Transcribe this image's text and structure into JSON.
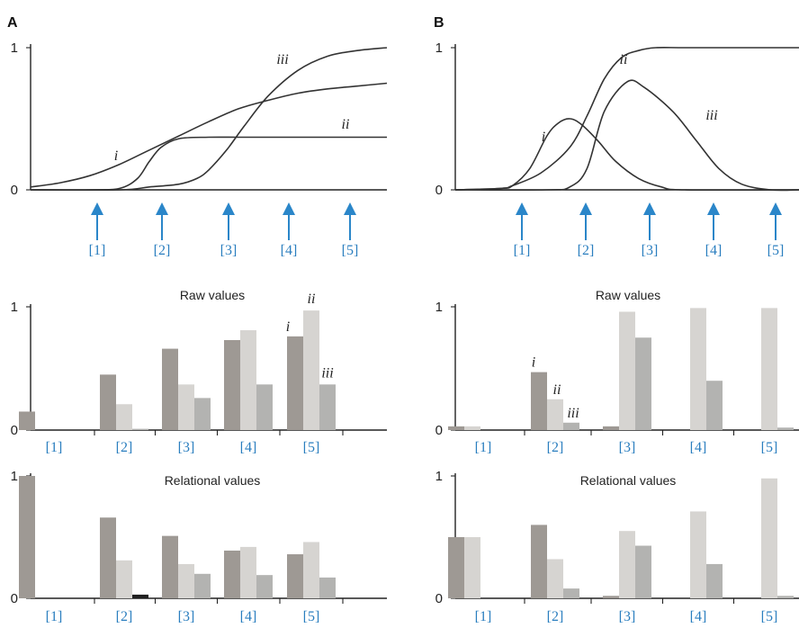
{
  "figure": {
    "panel_labels": [
      "A",
      "B"
    ],
    "series_names": [
      "i",
      "ii",
      "iii"
    ],
    "arrow_color": "#2a86c9",
    "category_color": "#2a7ebf",
    "bar_colors": [
      "#9e9994",
      "#d6d4d1",
      "#b3b3b1"
    ],
    "special_bar_color": "#1f1f1f"
  },
  "chart_data": [
    {
      "id": "A-curves",
      "type": "line",
      "panel": "A",
      "yticks": [
        "1",
        "0"
      ],
      "ylim": [
        0,
        1
      ],
      "xlim": [
        0,
        6
      ],
      "arrow_labels": [
        "[1]",
        "[2]",
        "[3]",
        "[4]",
        "[5]"
      ],
      "arrow_positions": [
        1,
        2,
        3,
        4,
        5
      ],
      "annotations": [
        "i",
        "ii",
        "iii"
      ],
      "series": [
        {
          "name": "i",
          "x": [
            0,
            0.5,
            1,
            1.5,
            2,
            2.5,
            3,
            3.5,
            4,
            4.5,
            5,
            5.5,
            6
          ],
          "values": [
            0.02,
            0.05,
            0.1,
            0.18,
            0.28,
            0.38,
            0.48,
            0.57,
            0.63,
            0.68,
            0.71,
            0.73,
            0.75
          ]
        },
        {
          "name": "ii",
          "x": [
            0,
            1,
            1.5,
            1.8,
            2,
            2.2,
            2.5,
            3,
            3.5,
            4,
            5,
            6
          ],
          "values": [
            0,
            0,
            0.01,
            0.08,
            0.2,
            0.3,
            0.36,
            0.37,
            0.37,
            0.37,
            0.37,
            0.37
          ]
        },
        {
          "name": "iii",
          "x": [
            0,
            1.5,
            2,
            2.5,
            2.8,
            3,
            3.3,
            3.6,
            4,
            4.5,
            5,
            5.5,
            6
          ],
          "values": [
            0,
            0,
            0.02,
            0.04,
            0.08,
            0.14,
            0.28,
            0.45,
            0.66,
            0.84,
            0.94,
            0.98,
            1.0
          ]
        }
      ]
    },
    {
      "id": "B-curves",
      "type": "line",
      "panel": "B",
      "yticks": [
        "1",
        "0"
      ],
      "ylim": [
        0,
        1
      ],
      "xlim": [
        0,
        6
      ],
      "arrow_labels": [
        "[1]",
        "[2]",
        "[3]",
        "[4]",
        "[5]"
      ],
      "arrow_positions": [
        1,
        2,
        3,
        4,
        5
      ],
      "annotations": [
        "i",
        "ii",
        "iii"
      ],
      "series": [
        {
          "name": "i",
          "x": [
            0,
            0.8,
            1,
            1.3,
            1.6,
            1.8,
            2,
            2.2,
            2.5,
            2.8,
            3.2,
            3.6,
            4,
            6
          ],
          "values": [
            0,
            0.01,
            0.03,
            0.15,
            0.38,
            0.47,
            0.5,
            0.46,
            0.34,
            0.2,
            0.08,
            0.02,
            0,
            0
          ]
        },
        {
          "name": "ii",
          "x": [
            0,
            0.8,
            1,
            1.5,
            2,
            2.3,
            2.6,
            2.9,
            3.2,
            3.5,
            4,
            5,
            6
          ],
          "values": [
            0,
            0.01,
            0.03,
            0.12,
            0.3,
            0.52,
            0.78,
            0.93,
            0.98,
            1.0,
            1.0,
            1.0,
            1.0
          ]
        },
        {
          "name": "iii",
          "x": [
            0,
            1.6,
            2,
            2.3,
            2.6,
            3,
            3.3,
            3.8,
            4.2,
            4.6,
            5,
            5.5,
            6
          ],
          "values": [
            0,
            0,
            0.02,
            0.15,
            0.55,
            0.76,
            0.72,
            0.55,
            0.35,
            0.15,
            0.04,
            0,
            0
          ]
        }
      ]
    },
    {
      "id": "A-raw",
      "type": "bar",
      "panel": "A",
      "title": "Raw values",
      "yticks": [
        "1",
        "0"
      ],
      "ylim": [
        0,
        1
      ],
      "categories": [
        "[1]",
        "[2]",
        "[3]",
        "[4]",
        "[5]"
      ],
      "annotations": [
        "i",
        "ii",
        "iii"
      ],
      "annotated_category": 4,
      "series": [
        {
          "name": "i",
          "values": [
            0.15,
            0.45,
            0.66,
            0.73,
            0.76
          ]
        },
        {
          "name": "ii",
          "values": [
            0,
            0.21,
            0.37,
            0.81,
            0.97
          ]
        },
        {
          "name": "iii",
          "values": [
            0,
            0.01,
            0.26,
            0.37,
            0.37
          ]
        }
      ]
    },
    {
      "id": "B-raw",
      "type": "bar",
      "panel": "B",
      "title": "Raw values",
      "yticks": [
        "1",
        "0"
      ],
      "ylim": [
        0,
        1
      ],
      "categories": [
        "[1]",
        "[2]",
        "[3]",
        "[4]",
        "[5]"
      ],
      "annotations": [
        "i",
        "ii",
        "iii"
      ],
      "annotated_category": 1,
      "series": [
        {
          "name": "i",
          "values": [
            0.03,
            0.47,
            0.03,
            0,
            0
          ]
        },
        {
          "name": "ii",
          "values": [
            0.03,
            0.25,
            0.96,
            0.99,
            0.99
          ]
        },
        {
          "name": "iii",
          "values": [
            0,
            0.06,
            0.75,
            0.4,
            0.02
          ]
        }
      ]
    },
    {
      "id": "A-relational",
      "type": "bar",
      "panel": "A",
      "title": "Relational values",
      "yticks": [
        "1",
        "0"
      ],
      "ylim": [
        0,
        1
      ],
      "categories": [
        "[1]",
        "[2]",
        "[3]",
        "[4]",
        "[5]"
      ],
      "series": [
        {
          "name": "i",
          "values": [
            1.0,
            0.66,
            0.51,
            0.39,
            0.36
          ]
        },
        {
          "name": "ii",
          "values": [
            0,
            0.31,
            0.28,
            0.42,
            0.46
          ]
        },
        {
          "name": "iii",
          "values": [
            0,
            0.03,
            0.2,
            0.19,
            0.17
          ]
        }
      ]
    },
    {
      "id": "B-relational",
      "type": "bar",
      "panel": "B",
      "title": "Relational values",
      "yticks": [
        "1",
        "0"
      ],
      "ylim": [
        0,
        1
      ],
      "categories": [
        "[1]",
        "[2]",
        "[3]",
        "[4]",
        "[5]"
      ],
      "series": [
        {
          "name": "i",
          "values": [
            0.5,
            0.6,
            0.02,
            0,
            0
          ]
        },
        {
          "name": "ii",
          "values": [
            0.5,
            0.32,
            0.55,
            0.71,
            0.98
          ]
        },
        {
          "name": "iii",
          "values": [
            0,
            0.08,
            0.43,
            0.28,
            0.02
          ]
        }
      ]
    }
  ]
}
